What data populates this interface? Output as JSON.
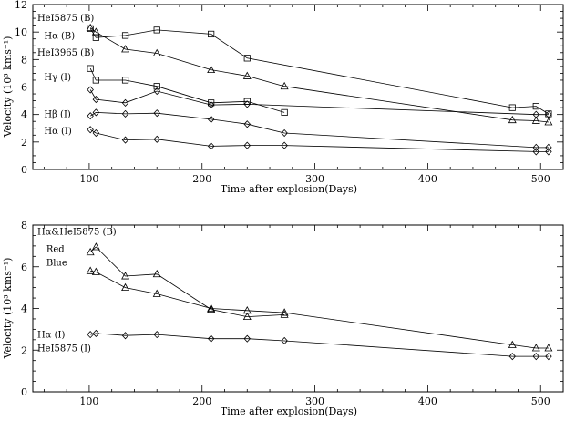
{
  "chart_data": [
    {
      "type": "line",
      "title": "",
      "xlabel": "Time after explosion(Days)",
      "ylabel": "Velocity (10³ kms⁻¹)",
      "xlim": [
        50,
        520
      ],
      "ylim": [
        0,
        12
      ],
      "xticks": [
        100,
        200,
        300,
        400,
        500
      ],
      "yticks": [
        0,
        2,
        4,
        6,
        8,
        10,
        12
      ],
      "grid": false,
      "legend": "none (inline labels)",
      "labels": [
        {
          "text": "HeI5875 (B)",
          "x": 54,
          "y": 10.8
        },
        {
          "text": "Hα (B)",
          "x": 60,
          "y": 9.5
        },
        {
          "text": "HeI3965 (B)",
          "x": 54,
          "y": 8.3
        },
        {
          "text": "Hγ (I)",
          "x": 60,
          "y": 6.5
        },
        {
          "text": "Hβ (I)",
          "x": 60,
          "y": 3.8
        },
        {
          "text": "Hα (I)",
          "x": 60,
          "y": 2.6
        }
      ],
      "series": [
        {
          "marker": "square",
          "points": [
            [
              101,
              10.25
            ],
            [
              106,
              9.6
            ],
            [
              132,
              9.75
            ],
            [
              160,
              10.15
            ],
            [
              208,
              9.85
            ],
            [
              240,
              8.1
            ],
            [
              475,
              4.5
            ],
            [
              496,
              4.6
            ],
            [
              507,
              4.05
            ]
          ]
        },
        {
          "marker": "triangle",
          "points": [
            [
              101,
              10.3
            ],
            [
              106,
              10.0
            ],
            [
              132,
              8.75
            ],
            [
              160,
              8.45
            ],
            [
              208,
              7.25
            ],
            [
              240,
              6.8
            ],
            [
              273,
              6.05
            ],
            [
              475,
              3.6
            ],
            [
              496,
              3.55
            ],
            [
              507,
              3.45
            ]
          ]
        },
        {
          "marker": "square",
          "points": [
            [
              101,
              7.35
            ],
            [
              106,
              6.5
            ],
            [
              132,
              6.5
            ],
            [
              160,
              6.05
            ],
            [
              208,
              4.85
            ],
            [
              240,
              4.95
            ],
            [
              273,
              4.15
            ]
          ]
        },
        {
          "marker": "diamond",
          "points": [
            [
              101,
              5.8
            ],
            [
              106,
              5.1
            ],
            [
              132,
              4.85
            ],
            [
              160,
              5.7
            ],
            [
              208,
              4.7
            ],
            [
              240,
              4.75
            ],
            [
              496,
              4.0
            ],
            [
              507,
              4.0
            ]
          ]
        },
        {
          "marker": "diamond",
          "points": [
            [
              101,
              3.9
            ],
            [
              106,
              4.15
            ],
            [
              132,
              4.05
            ],
            [
              160,
              4.1
            ],
            [
              208,
              3.65
            ],
            [
              240,
              3.3
            ],
            [
              273,
              2.65
            ],
            [
              496,
              1.6
            ],
            [
              507,
              1.6
            ]
          ]
        },
        {
          "marker": "diamond",
          "points": [
            [
              101,
              2.9
            ],
            [
              106,
              2.65
            ],
            [
              132,
              2.15
            ],
            [
              160,
              2.2
            ],
            [
              208,
              1.7
            ],
            [
              240,
              1.75
            ],
            [
              273,
              1.75
            ],
            [
              496,
              1.3
            ],
            [
              507,
              1.3
            ]
          ]
        }
      ]
    },
    {
      "type": "line",
      "title": "",
      "xlabel": "Time after explosion(Days)",
      "ylabel": "Velocity (10³ kms⁻¹)",
      "xlim": [
        50,
        520
      ],
      "ylim": [
        0,
        8
      ],
      "xticks": [
        100,
        200,
        300,
        400,
        500
      ],
      "yticks": [
        0,
        2,
        4,
        6,
        8
      ],
      "grid": false,
      "legend": "none (inline labels)",
      "labels": [
        {
          "text": "Hα&HeI5875 (B)",
          "x": 54,
          "y": 7.55
        },
        {
          "text": "Red",
          "x": 62,
          "y": 6.7
        },
        {
          "text": "Blue",
          "x": 62,
          "y": 6.05
        },
        {
          "text": "Hα (I)",
          "x": 54,
          "y": 2.6
        },
        {
          "text": "HeI5875 (I)",
          "x": 54,
          "y": 1.95
        }
      ],
      "series": [
        {
          "marker": "triangle",
          "points": [
            [
              101,
              6.7
            ],
            [
              106,
              6.95
            ],
            [
              132,
              5.55
            ],
            [
              160,
              5.65
            ],
            [
              208,
              3.95
            ],
            [
              240,
              3.6
            ],
            [
              273,
              3.7
            ]
          ]
        },
        {
          "marker": "triangle",
          "points": [
            [
              101,
              5.8
            ],
            [
              106,
              5.75
            ],
            [
              132,
              5.0
            ],
            [
              160,
              4.7
            ],
            [
              208,
              4.0
            ],
            [
              240,
              3.9
            ],
            [
              273,
              3.8
            ],
            [
              475,
              2.25
            ],
            [
              496,
              2.1
            ],
            [
              507,
              2.1
            ]
          ]
        },
        {
          "marker": "diamond",
          "points": [
            [
              101,
              2.75
            ],
            [
              106,
              2.8
            ],
            [
              132,
              2.7
            ],
            [
              160,
              2.75
            ],
            [
              208,
              2.55
            ],
            [
              240,
              2.55
            ],
            [
              273,
              2.45
            ],
            [
              475,
              1.7
            ],
            [
              496,
              1.7
            ],
            [
              507,
              1.7
            ]
          ]
        }
      ]
    }
  ]
}
